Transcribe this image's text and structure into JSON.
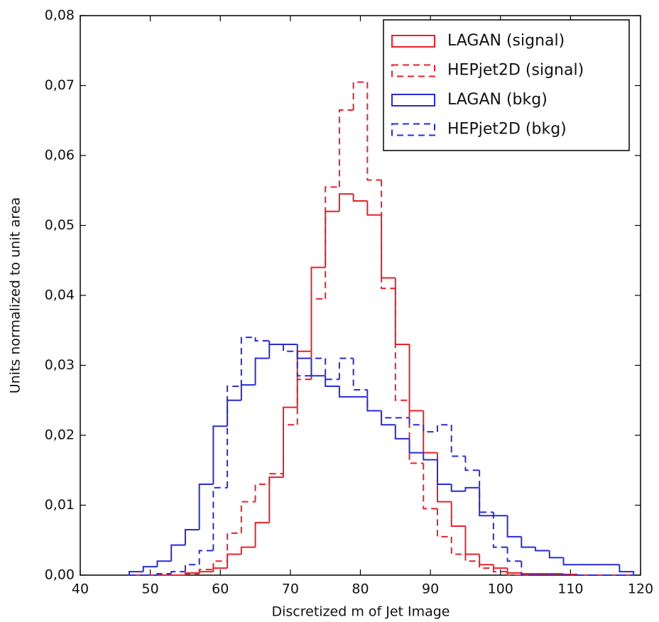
{
  "chart_data": {
    "type": "histogram",
    "xlabel": "Discretized m of Jet Image",
    "ylabel": "Units normalized to unit area",
    "bins": [
      47,
      49,
      51,
      53,
      55,
      57,
      59,
      61,
      63,
      65,
      67,
      69,
      71,
      73,
      75,
      77,
      79,
      81,
      83,
      85,
      87,
      89,
      91,
      93,
      95,
      97,
      99,
      101,
      103,
      105,
      107,
      109,
      111,
      113,
      115,
      117,
      119
    ],
    "series": [
      {
        "name": "LAGAN (signal)",
        "color": "#e8202a",
        "linestyle": "solid",
        "values": [
          0,
          0,
          0,
          0,
          0.0003,
          0.0005,
          0.001,
          0.003,
          0.004,
          0.0075,
          0.014,
          0.024,
          0.032,
          0.044,
          0.052,
          0.0545,
          0.0535,
          0.0515,
          0.0425,
          0.033,
          0.0235,
          0.0175,
          0.0105,
          0.007,
          0.003,
          0.0015,
          0.001,
          0.0003,
          0.0002,
          0.0002,
          0.0002,
          0.0001,
          0,
          0,
          0,
          0
        ]
      },
      {
        "name": "HEPjet2D (signal)",
        "color": "#e8202a",
        "linestyle": "dashed",
        "values": [
          0,
          0,
          0,
          0,
          0.0002,
          0.0008,
          0.002,
          0.006,
          0.0105,
          0.013,
          0.0145,
          0.0215,
          0.028,
          0.0395,
          0.0555,
          0.0665,
          0.0705,
          0.0565,
          0.041,
          0.025,
          0.016,
          0.0095,
          0.0055,
          0.003,
          0.002,
          0.001,
          0.0005,
          0,
          0,
          0,
          0,
          0,
          0,
          0,
          0,
          0
        ]
      },
      {
        "name": "LAGAN (bkg)",
        "color": "#2a2ad8",
        "linestyle": "solid",
        "values": [
          0.0005,
          0.0012,
          0.002,
          0.0043,
          0.0065,
          0.013,
          0.0213,
          0.025,
          0.0272,
          0.031,
          0.033,
          0.033,
          0.031,
          0.0285,
          0.027,
          0.0255,
          0.0255,
          0.0235,
          0.0215,
          0.0195,
          0.0175,
          0.0165,
          0.013,
          0.012,
          0.0125,
          0.0085,
          0.0085,
          0.0055,
          0.004,
          0.0035,
          0.0025,
          0.0015,
          0.0015,
          0.0015,
          0.0015,
          0.0005
        ]
      },
      {
        "name": "HEPjet2D (bkg)",
        "color": "#2a2ad8",
        "linestyle": "dashed",
        "values": [
          0,
          0,
          0.0002,
          0.0005,
          0.0015,
          0.0035,
          0.0125,
          0.027,
          0.034,
          0.0335,
          0.033,
          0.032,
          0.0285,
          0.031,
          0.028,
          0.031,
          0.0265,
          0.0235,
          0.0225,
          0.0225,
          0.0215,
          0.0205,
          0.0215,
          0.017,
          0.015,
          0.009,
          0.004,
          0.002,
          0,
          0,
          0,
          0,
          0,
          0,
          0,
          0
        ]
      }
    ],
    "xlim": [
      40,
      120
    ],
    "ylim": [
      0,
      0.08
    ],
    "xticks": [
      40,
      50,
      60,
      70,
      80,
      90,
      100,
      110,
      120
    ],
    "yticks": [
      {
        "value": 0,
        "label": "0,00"
      },
      {
        "value": 0.01,
        "label": "0,01"
      },
      {
        "value": 0.02,
        "label": "0,02"
      },
      {
        "value": 0.03,
        "label": "0,03"
      },
      {
        "value": 0.04,
        "label": "0,04"
      },
      {
        "value": 0.05,
        "label": "0,05"
      },
      {
        "value": 0.06,
        "label": "0,06"
      },
      {
        "value": 0.07,
        "label": "0,07"
      },
      {
        "value": 0.08,
        "label": "0,08"
      }
    ],
    "legend": "upper right"
  }
}
